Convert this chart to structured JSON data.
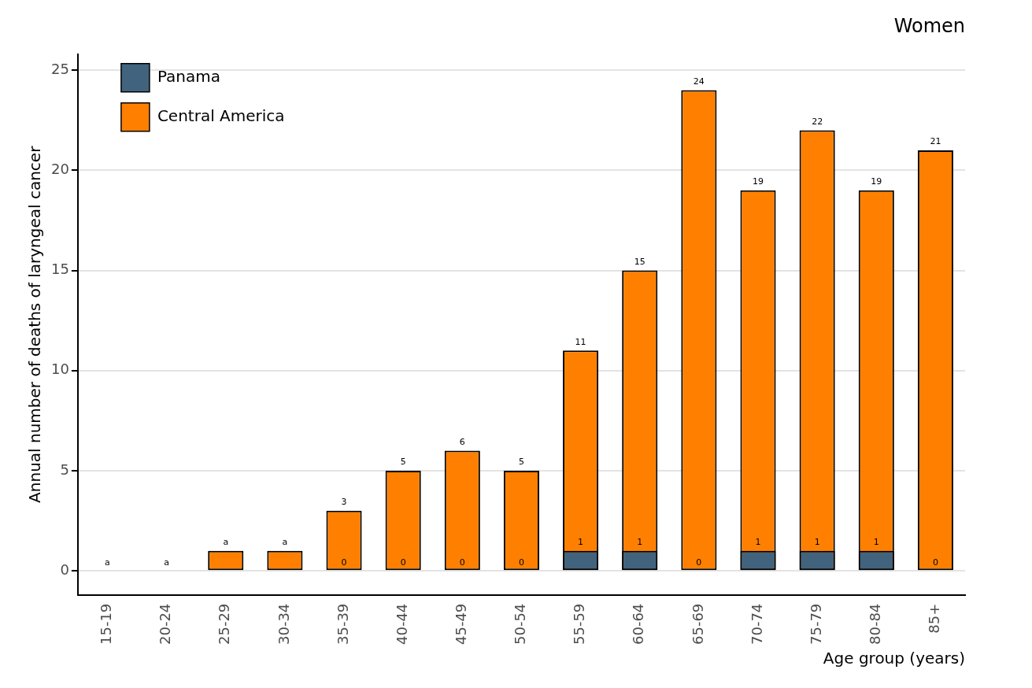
{
  "chart_data": {
    "type": "bar",
    "title": "Women",
    "xlabel": "Age group (years)",
    "ylabel": "Annual number of deaths of laryngeal cancer",
    "categories": [
      "15-19",
      "20-24",
      "25-29",
      "30-34",
      "35-39",
      "40-44",
      "45-49",
      "50-54",
      "55-59",
      "60-64",
      "65-69",
      "70-74",
      "75-79",
      "80-84",
      "85+"
    ],
    "series": [
      {
        "name": "Panama",
        "color": "#41637d",
        "values": [
          0,
          0,
          0,
          0,
          0,
          0,
          0,
          0,
          1,
          1,
          0,
          1,
          1,
          1,
          0
        ],
        "value_labels": [
          null,
          null,
          null,
          null,
          "0",
          "0",
          "0",
          "0",
          "1",
          "1",
          "0",
          "1",
          "1",
          "1",
          "0"
        ]
      },
      {
        "name": "Central America",
        "color": "#ff8000",
        "values": [
          0,
          0,
          1,
          1,
          3,
          5,
          6,
          5,
          11,
          15,
          24,
          19,
          22,
          19,
          21
        ],
        "value_labels": [
          "a",
          "a",
          "a",
          "a",
          "3",
          "5",
          "6",
          "5",
          "11",
          "15",
          "24",
          "19",
          "22",
          "19",
          "21"
        ]
      }
    ],
    "ylim": [
      -1.2,
      25.8
    ],
    "yticks": [
      0,
      5,
      10,
      15,
      20,
      25
    ],
    "grid": "y",
    "legend": "top left"
  }
}
